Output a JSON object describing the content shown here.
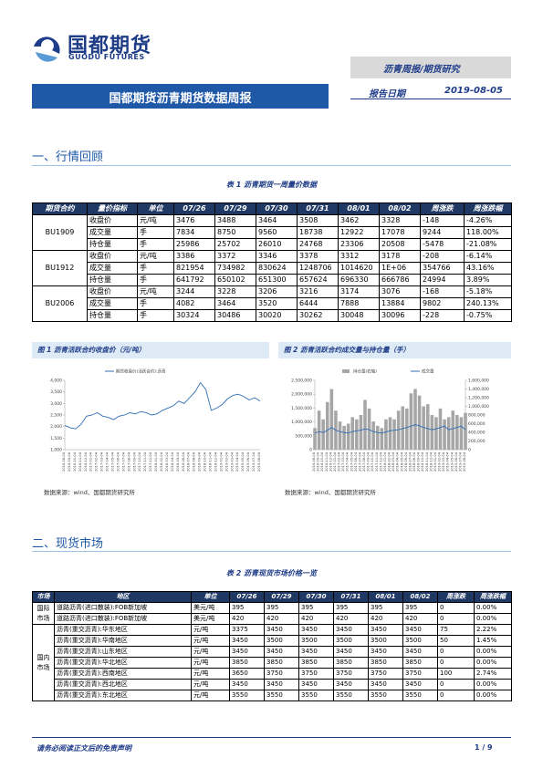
{
  "header": {
    "logo_cn": "国都期货",
    "logo_en": "GUODU FUTURES",
    "category": "沥青周报/期货研究",
    "banner_title": "国都期货沥青期货数据周报",
    "date_label": "报告日期",
    "date": "2019-08-05"
  },
  "section1": {
    "heading": "一、行情回顾"
  },
  "table1": {
    "caption": "表 1 沥青期货一周量价数据",
    "headers": [
      "期货合约",
      "量价指标",
      "单位",
      "07/26",
      "07/29",
      "07/30",
      "07/31",
      "08/01",
      "08/02",
      "周涨跌",
      "周涨跌幅"
    ],
    "groups": [
      {
        "name": "BU1909",
        "rows": [
          [
            "收盘价",
            "元/吨",
            "3476",
            "3488",
            "3464",
            "3508",
            "3462",
            "3328",
            "-148",
            "-4.26%"
          ],
          [
            "成交量",
            "手",
            "7834",
            "8750",
            "9560",
            "18738",
            "12922",
            "17078",
            "9244",
            "118.00%"
          ],
          [
            "持仓量",
            "手",
            "25986",
            "25702",
            "26010",
            "24768",
            "23306",
            "20508",
            "-5478",
            "-21.08%"
          ]
        ]
      },
      {
        "name": "BU1912",
        "rows": [
          [
            "收盘价",
            "元/吨",
            "3386",
            "3372",
            "3346",
            "3378",
            "3312",
            "3178",
            "-208",
            "-6.14%"
          ],
          [
            "成交量",
            "手",
            "821954",
            "734982",
            "830624",
            "1248706",
            "1014620",
            "1E+06",
            "354766",
            "43.16%"
          ],
          [
            "持仓量",
            "手",
            "641792",
            "650102",
            "651300",
            "657624",
            "696330",
            "666786",
            "24994",
            "3.89%"
          ]
        ]
      },
      {
        "name": "BU2006",
        "rows": [
          [
            "收盘价",
            "元/吨",
            "3244",
            "3228",
            "3206",
            "3216",
            "3174",
            "3076",
            "-168",
            "-5.18%"
          ],
          [
            "成交量",
            "手",
            "4082",
            "3464",
            "3520",
            "6444",
            "7888",
            "13884",
            "9802",
            "240.13%"
          ],
          [
            "持仓量",
            "手",
            "30324",
            "30486",
            "30020",
            "30262",
            "30048",
            "30096",
            "-228",
            "-0.75%"
          ]
        ]
      }
    ]
  },
  "figures": [
    {
      "title": "图 1 沥青活跃合约收盘价（元/吨）",
      "source": "数据来源：wind、国都期货研究所"
    },
    {
      "title": "图 2 沥青活跃合约成交量与持仓量（手）",
      "source": "数据来源：wind、国都期货研究所"
    }
  ],
  "chart_data": [
    {
      "type": "line",
      "x": [
        "2016-08-04",
        "2016-09-04",
        "2016-10-04",
        "2016-11-04",
        "2016-12-04",
        "2017-01-04",
        "2017-02-04",
        "2017-03-04",
        "2017-04-04",
        "2017-05-04",
        "2017-06-04",
        "2017-07-04",
        "2017-08-04",
        "2017-09-04",
        "2017-10-04",
        "2017-11-04",
        "2017-12-04",
        "2018-01-04",
        "2018-02-04",
        "2018-03-04",
        "2018-04-04",
        "2018-05-04",
        "2018-06-04",
        "2018-07-04",
        "2018-08-04",
        "2018-09-04",
        "2018-10-04",
        "2018-11-04",
        "2018-12-04",
        "2019-01-04",
        "2019-02-04",
        "2019-03-04",
        "2019-04-04",
        "2019-05-04",
        "2019-06-04",
        "2019-07-04",
        "2019-08-04"
      ],
      "series": [
        {
          "name": "期货收盘价(活跃合约):沥青",
          "color": "#2f6db5",
          "values": [
            2050,
            1950,
            1900,
            2100,
            2450,
            2500,
            2600,
            2450,
            2400,
            2300,
            2450,
            2500,
            2600,
            2550,
            2650,
            2600,
            2500,
            2550,
            2700,
            2800,
            2900,
            3100,
            3000,
            3250,
            3500,
            3900,
            3600,
            2700,
            2800,
            2950,
            3200,
            3350,
            3400,
            3300,
            3150,
            3250,
            3100
          ]
        }
      ],
      "ylim": [
        1000,
        4000
      ],
      "yticks": [
        {
          "value": 1000,
          "label": "1,000"
        },
        {
          "value": 1500,
          "label": "1,500"
        },
        {
          "value": 2000,
          "label": "2,000"
        },
        {
          "value": 2500,
          "label": "2,500"
        },
        {
          "value": 3000,
          "label": "3,000"
        },
        {
          "value": 3500,
          "label": "3,500"
        },
        {
          "value": 4000,
          "label": "4,000"
        }
      ]
    },
    {
      "type": "combo",
      "x": [
        "2016-08-04",
        "2016-09-04",
        "2016-10-04",
        "2016-11-04",
        "2016-12-04",
        "2017-01-04",
        "2017-02-04",
        "2017-03-04",
        "2017-04-04",
        "2017-05-04",
        "2017-06-04",
        "2017-07-04",
        "2017-08-04",
        "2017-09-04",
        "2017-10-04",
        "2017-11-04",
        "2017-12-04",
        "2018-01-04",
        "2018-02-04",
        "2018-03-04",
        "2018-04-04",
        "2018-05-04",
        "2018-06-04",
        "2018-07-04",
        "2018-08-04",
        "2018-09-04",
        "2018-10-04",
        "2018-11-04",
        "2018-12-04",
        "2019-01-04",
        "2019-02-04",
        "2019-03-04",
        "2019-04-04",
        "2019-05-04",
        "2019-06-04",
        "2019-07-04",
        "2019-08-04"
      ],
      "series": [
        {
          "name": "持仓量(右轴)",
          "type": "bar",
          "axis": "y2",
          "color": "#a6a6a6",
          "values": [
            500000,
            900000,
            700000,
            1100000,
            1400000,
            900000,
            650000,
            550000,
            600000,
            750000,
            700000,
            800000,
            1150000,
            950000,
            650000,
            550000,
            500000,
            700000,
            750000,
            700000,
            900000,
            1000000,
            950000,
            1300000,
            1400000,
            1250000,
            1000000,
            1050000,
            800000,
            750000,
            950000,
            700000,
            750000,
            900000,
            800000,
            750000,
            850000
          ]
        },
        {
          "name": "成交量",
          "type": "line",
          "color": "#2f6db5",
          "values": [
            600000,
            650000,
            620000,
            700000,
            800000,
            700000,
            650000,
            620000,
            600000,
            650000,
            680000,
            700000,
            750000,
            720000,
            650000,
            620000,
            600000,
            640000,
            680000,
            700000,
            720000,
            760000,
            800000,
            850000,
            900000,
            860000,
            800000,
            760000,
            720000,
            750000,
            800000,
            850000,
            720000,
            760000,
            800000,
            850000,
            720000
          ]
        }
      ],
      "ylim": [
        0,
        2500000
      ],
      "yticks": [
        0,
        {
          "value": 500000,
          "label": "500,000"
        },
        {
          "value": 1000000,
          "label": "1,000,000"
        },
        {
          "value": 1500000,
          "label": "1,500,000"
        },
        {
          "value": 2000000,
          "label": "2,000,000"
        },
        {
          "value": 2500000,
          "label": "2,500,000"
        }
      ],
      "y2lim": [
        0,
        1600000
      ],
      "y2ticks": [
        0,
        {
          "value": 200000,
          "label": "200,000"
        },
        {
          "value": 400000,
          "label": "400,000"
        },
        {
          "value": 600000,
          "label": "600,000"
        },
        {
          "value": 800000,
          "label": "800,000"
        },
        {
          "value": 1000000,
          "label": "1,000,000"
        },
        {
          "value": 1200000,
          "label": "1,200,000"
        },
        {
          "value": 1400000,
          "label": "1,400,000"
        },
        {
          "value": 1600000,
          "label": "1,600,000"
        }
      ]
    }
  ],
  "section2": {
    "heading": "二、现货市场"
  },
  "table2": {
    "caption": "表 2 沥青现货市场价格一览",
    "headers": [
      "市场",
      "地区",
      "单位",
      "07/26",
      "07/29",
      "07/30",
      "07/31",
      "08/01",
      "08/02",
      "周涨跌",
      "周涨跌幅"
    ],
    "groups": [
      {
        "name": "国际市场",
        "rows": [
          [
            "道路沥青(进口散装):FOB新加坡",
            "美元/吨",
            "395",
            "395",
            "395",
            "395",
            "395",
            "395",
            "0",
            "0.00%"
          ],
          [
            "道路沥青(进口散装):FOB新加坡",
            "美元/吨",
            "420",
            "420",
            "420",
            "420",
            "420",
            "420",
            "0",
            "0.00%"
          ]
        ]
      },
      {
        "name": "国内市场",
        "rows": [
          [
            "沥青(重交沥青):华东地区",
            "元/吨",
            "3375",
            "3450",
            "3450",
            "3450",
            "3450",
            "3450",
            "75",
            "2.22%"
          ],
          [
            "沥青(重交沥青):华南地区",
            "元/吨",
            "3450",
            "3500",
            "3500",
            "3500",
            "3500",
            "3500",
            "50",
            "1.45%"
          ],
          [
            "沥青(重交沥青):山东地区",
            "元/吨",
            "3450",
            "3450",
            "3450",
            "3450",
            "3450",
            "3450",
            "0",
            "0.00%"
          ],
          [
            "沥青(重交沥青):华北地区",
            "元/吨",
            "3850",
            "3850",
            "3850",
            "3850",
            "3850",
            "3850",
            "0",
            "0.00%"
          ],
          [
            "沥青(重交沥青):西南地区",
            "元/吨",
            "3650",
            "3750",
            "3750",
            "3750",
            "3750",
            "3750",
            "100",
            "2.74%"
          ],
          [
            "沥青(重交沥青):西北地区",
            "元/吨",
            "3450",
            "3450",
            "3450",
            "3450",
            "3450",
            "3450",
            "0",
            "0.00%"
          ],
          [
            "沥青(重交沥青):东北地区",
            "元/吨",
            "3550",
            "3550",
            "3550",
            "3550",
            "3550",
            "3550",
            "0",
            "0.00%"
          ]
        ]
      }
    ]
  },
  "footer": {
    "disclaimer": "请务必阅读正文后的免责声明",
    "page": "1 / 9"
  }
}
